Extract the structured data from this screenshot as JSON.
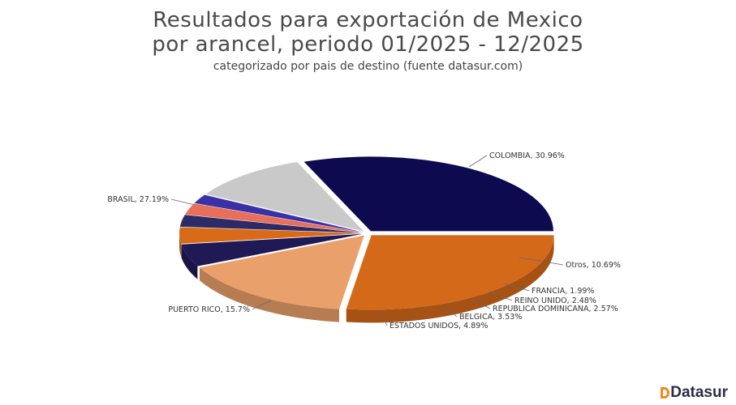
{
  "chart_data": {
    "type": "pie",
    "title_lines": [
      "Resultados para exportación de Mexico",
      "por arancel, periodo 01/2025 - 12/2025"
    ],
    "subtitle": "categorizado por pais de destino (fuente datasur.com)",
    "three_d": true,
    "slices": [
      {
        "label": "COLOMBIA, 30.96%",
        "value": 30.96,
        "color": "#0d0a50"
      },
      {
        "label": "Otros, 10.69%",
        "value": 10.69,
        "color": "#c9c9c9"
      },
      {
        "label": "FRANCIA, 1.99%",
        "value": 1.99,
        "color": "#3a31a6"
      },
      {
        "label": "REINO UNIDO, 2.48%",
        "value": 2.48,
        "color": "#e8705a"
      },
      {
        "label": "REPUBLICA DOMINICANA, 2.57%",
        "value": 2.57,
        "color": "#2e2a66"
      },
      {
        "label": "BELGICA, 3.53%",
        "value": 3.53,
        "color": "#d86a1a"
      },
      {
        "label": "ESTADOS UNIDOS, 4.89%",
        "value": 4.89,
        "color": "#1f1a56"
      },
      {
        "label": "PUERTO RICO, 15.7%",
        "value": 15.7,
        "color": "#e9a06a"
      },
      {
        "label": "BRASIL, 27.19%",
        "value": 27.19,
        "color": "#d4691a"
      }
    ]
  },
  "brand": {
    "name": "Datasur",
    "colors": {
      "mark": "#f08a1c",
      "text": "#2b2b4a"
    }
  }
}
